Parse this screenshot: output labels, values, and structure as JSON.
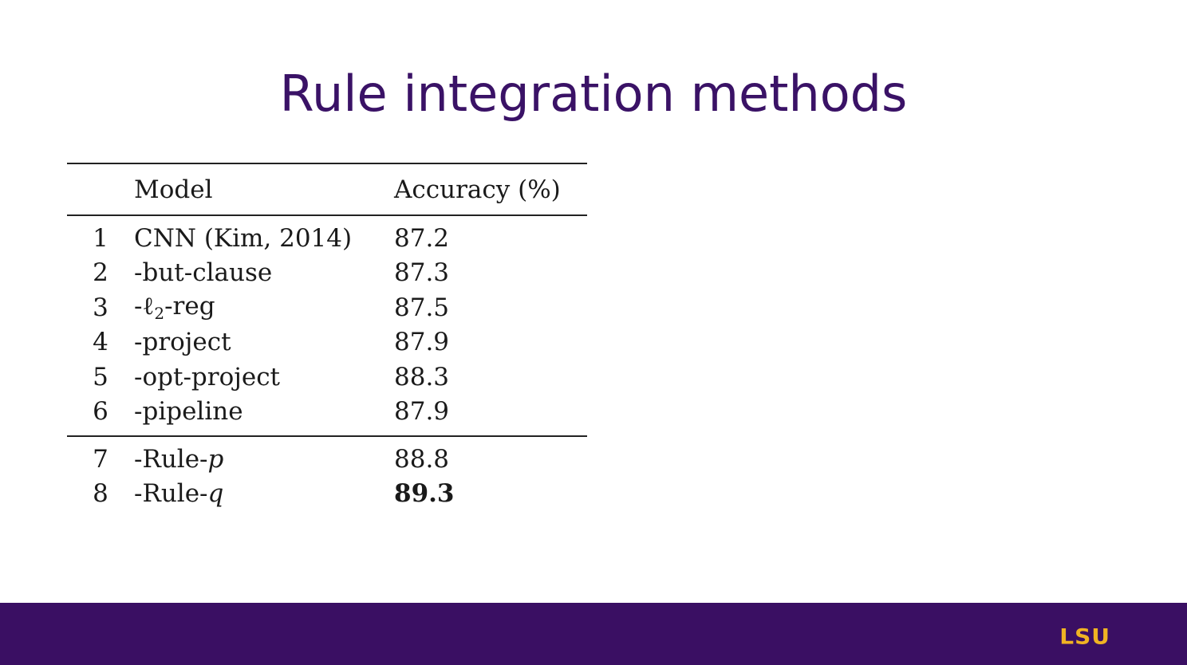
{
  "slide": {
    "title": "Rule integration methods"
  },
  "table": {
    "headers": {
      "num": "",
      "model": "Model",
      "accuracy": "Accuracy (%)"
    },
    "rows": [
      {
        "num": "1",
        "model": "CNN (Kim, 2014)",
        "accuracy": "87.2"
      },
      {
        "num": "2",
        "model": "-but-clause",
        "accuracy": "87.3"
      },
      {
        "num": "3",
        "model_prefix": "-ℓ",
        "model_sub": "2",
        "model_suffix": "-reg",
        "accuracy": "87.5"
      },
      {
        "num": "4",
        "model": "-project",
        "accuracy": "87.9"
      },
      {
        "num": "5",
        "model": "-opt-project",
        "accuracy": "88.3"
      },
      {
        "num": "6",
        "model": "-pipeline",
        "accuracy": "87.9"
      },
      {
        "num": "7",
        "model_prefix": "-Rule-",
        "model_italic": "p",
        "accuracy": "88.8"
      },
      {
        "num": "8",
        "model_prefix": "-Rule-",
        "model_italic": "q",
        "accuracy": "89.3",
        "accuracy_bold": true
      }
    ]
  },
  "footer": {
    "logo_text": "LSU",
    "background_color": "#3a0f63",
    "logo_color": "#f0b323"
  },
  "colors": {
    "title": "#3a1266"
  }
}
